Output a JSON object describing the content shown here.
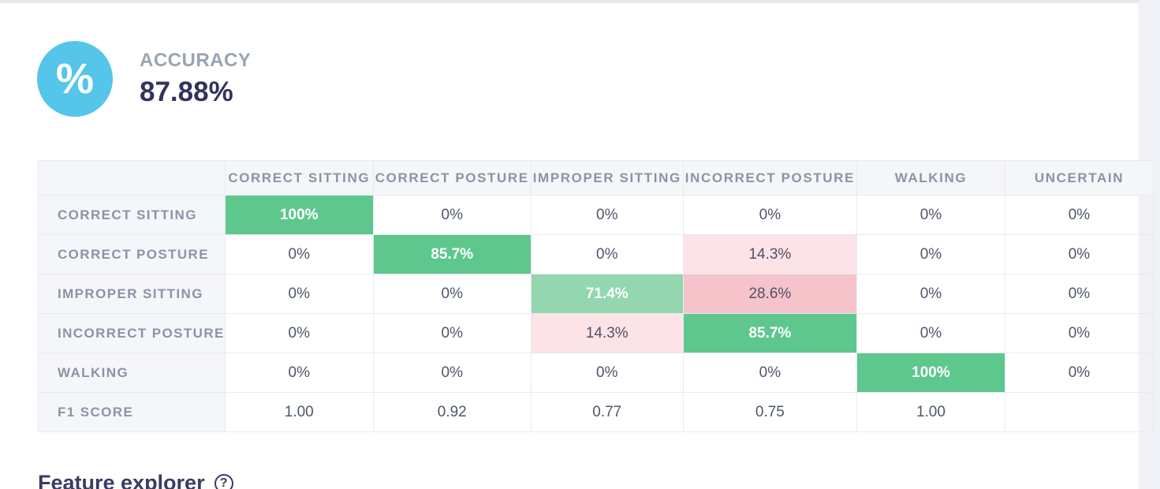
{
  "page": {
    "background": "#ffffff",
    "top_bar_color": "#e8e8e8",
    "right_strip_color": "#f1f2f7"
  },
  "accuracy_card": {
    "label": "ACCURACY",
    "value": "87.88%",
    "icon_glyph": "%",
    "icon_bg": "#55c5e9",
    "icon_fg": "#ffffff"
  },
  "confusion_matrix": {
    "columns": [
      "CORRECT SITTING",
      "CORRECT POSTURE",
      "IMPROPER SITTING",
      "INCORRECT POSTURE",
      "WALKING",
      "UNCERTAIN"
    ],
    "rows": [
      {
        "label": "CORRECT SITTING",
        "cells": [
          {
            "text": "100%",
            "bg": "#5dc78e",
            "fg": "#ffffff",
            "bold": true
          },
          {
            "text": "0%"
          },
          {
            "text": "0%"
          },
          {
            "text": "0%"
          },
          {
            "text": "0%"
          },
          {
            "text": "0%"
          }
        ]
      },
      {
        "label": "CORRECT POSTURE",
        "cells": [
          {
            "text": "0%"
          },
          {
            "text": "85.7%",
            "bg": "#5dc78e",
            "fg": "#ffffff",
            "bold": true
          },
          {
            "text": "0%"
          },
          {
            "text": "14.3%",
            "bg": "#fbe3e7",
            "fg": "#51516b"
          },
          {
            "text": "0%"
          },
          {
            "text": "0%"
          }
        ]
      },
      {
        "label": "IMPROPER SITTING",
        "cells": [
          {
            "text": "0%"
          },
          {
            "text": "0%"
          },
          {
            "text": "71.4%",
            "bg": "#93d6b0",
            "fg": "#ffffff",
            "bold": true
          },
          {
            "text": "28.6%",
            "bg": "#f5c3ca",
            "fg": "#51516b"
          },
          {
            "text": "0%"
          },
          {
            "text": "0%"
          }
        ]
      },
      {
        "label": "INCORRECT POSTURE",
        "cells": [
          {
            "text": "0%"
          },
          {
            "text": "0%"
          },
          {
            "text": "14.3%",
            "bg": "#fbe3e7",
            "fg": "#51516b"
          },
          {
            "text": "85.7%",
            "bg": "#5dc78e",
            "fg": "#ffffff",
            "bold": true
          },
          {
            "text": "0%"
          },
          {
            "text": "0%"
          }
        ]
      },
      {
        "label": "WALKING",
        "cells": [
          {
            "text": "0%"
          },
          {
            "text": "0%"
          },
          {
            "text": "0%"
          },
          {
            "text": "0%"
          },
          {
            "text": "100%",
            "bg": "#5dc78e",
            "fg": "#ffffff",
            "bold": true
          },
          {
            "text": "0%"
          }
        ]
      },
      {
        "label": "F1 SCORE",
        "cells": [
          {
            "text": "1.00"
          },
          {
            "text": "0.92"
          },
          {
            "text": "0.77"
          },
          {
            "text": "0.75"
          },
          {
            "text": "1.00"
          },
          {
            "text": ""
          }
        ]
      }
    ],
    "palette": {
      "green_strong": "#5dc78e",
      "green_light": "#93d6b0",
      "pink_strong": "#f5c3ca",
      "pink_light": "#fbe3e7",
      "header_bg": "#f5f6f9",
      "header_text": "#8b93a5",
      "cell_text": "#4e5669",
      "border": "#e8ebef"
    }
  },
  "feature_explorer": {
    "title": "Feature explorer",
    "help_icon": "?"
  }
}
